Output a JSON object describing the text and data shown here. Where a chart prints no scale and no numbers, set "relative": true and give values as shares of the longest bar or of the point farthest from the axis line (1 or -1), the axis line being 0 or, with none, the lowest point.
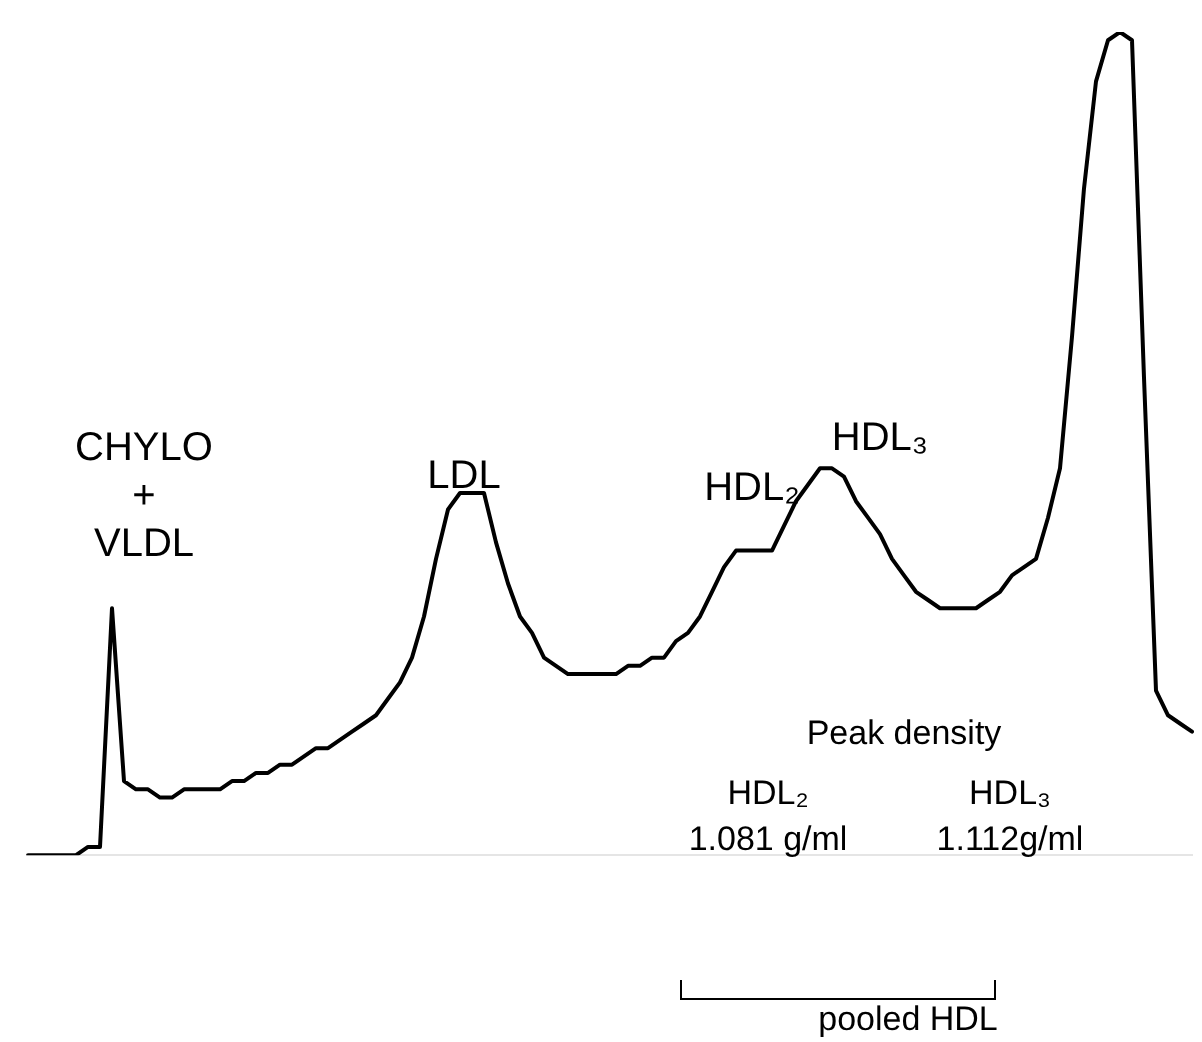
{
  "chart_data": {
    "type": "line",
    "relative": true,
    "legend": false,
    "marker": "none",
    "line_style": "solid",
    "categories": [
      null,
      null,
      null,
      null,
      null,
      null,
      null,
      null,
      null,
      null,
      null,
      null,
      null,
      null,
      null,
      null,
      null,
      null,
      null,
      null,
      null,
      null,
      null,
      null,
      null,
      null,
      null,
      null,
      null,
      null,
      null,
      null,
      null,
      null,
      null,
      null,
      null,
      null,
      null,
      null,
      null,
      null,
      null,
      null,
      null,
      null,
      null,
      null,
      null,
      null,
      null,
      null,
      null,
      null,
      null,
      null,
      null,
      null,
      null,
      null,
      null,
      null,
      null,
      null,
      null,
      null,
      null,
      null,
      null,
      null,
      null,
      null,
      null,
      null,
      null,
      null,
      null,
      null,
      null,
      null,
      null,
      null,
      null,
      null,
      null,
      null,
      null,
      null,
      null,
      null,
      null,
      null,
      null,
      null,
      null,
      null,
      null,
      null
    ],
    "series": [
      {
        "color": "#000000",
        "values": [
          0,
          0,
          0,
          0,
          0,
          0.01,
          0.01,
          0.3,
          0.09,
          0.08,
          0.08,
          0.07,
          0.07,
          0.08,
          0.08,
          0.08,
          0.08,
          0.09,
          0.09,
          0.1,
          0.1,
          0.11,
          0.11,
          0.12,
          0.13,
          0.13,
          0.14,
          0.15,
          0.16,
          0.17,
          0.19,
          0.21,
          0.24,
          0.29,
          0.36,
          0.42,
          0.44,
          0.44,
          0.44,
          0.38,
          0.33,
          0.29,
          0.27,
          0.24,
          0.23,
          0.22,
          0.22,
          0.22,
          0.22,
          0.22,
          0.23,
          0.23,
          0.24,
          0.24,
          0.26,
          0.27,
          0.29,
          0.32,
          0.35,
          0.37,
          0.37,
          0.37,
          0.37,
          0.4,
          0.43,
          0.45,
          0.47,
          0.47,
          0.46,
          0.43,
          0.41,
          0.39,
          0.36,
          0.34,
          0.32,
          0.31,
          0.3,
          0.3,
          0.3,
          0.3,
          0.31,
          0.32,
          0.34,
          0.35,
          0.36,
          0.41,
          0.47,
          0.63,
          0.81,
          0.94,
          0.99,
          1,
          0.99,
          0.58,
          0.2,
          0.17,
          0.16,
          0.15
        ]
      }
    ],
    "annotations": [
      "CHYLO\n+\nVLDL",
      "LDL",
      "HDL₂",
      "HDL₃",
      "Peak density",
      "HDL₂\n1.081 g/ml",
      "HDL₃\n1.112g/ml",
      "pooled HDL"
    ]
  }
}
